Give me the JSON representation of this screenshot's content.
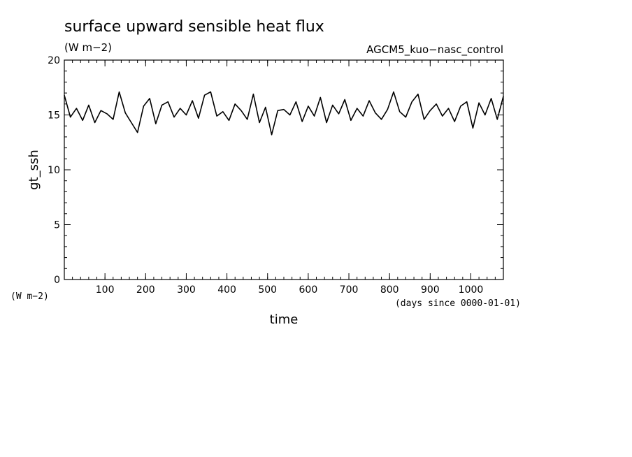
{
  "chart_data": {
    "type": "line",
    "title": "surface upward sensible heat flux",
    "units": "(W m−2)",
    "run_label": "AGCM5_kuo−nasc_control",
    "xlabel": "time",
    "x_units": "(days since 0000-01-01)",
    "ylabel": "gt_ssh",
    "y_units": "(W m−2)",
    "xlim": [
      0,
      1080
    ],
    "ylim": [
      0,
      20
    ],
    "x_ticks": [
      100,
      200,
      300,
      400,
      500,
      600,
      700,
      800,
      900,
      1000
    ],
    "y_ticks": [
      0,
      5,
      10,
      15,
      20
    ],
    "grid": false,
    "line_color": "#000000",
    "series": [
      {
        "x": [
          0,
          15,
          30,
          45,
          60,
          75,
          90,
          105,
          120,
          135,
          150,
          165,
          180,
          195,
          210,
          225,
          240,
          255,
          270,
          285,
          300,
          315,
          330,
          345,
          360,
          375,
          390,
          405,
          420,
          435,
          450,
          465,
          480,
          495,
          510,
          525,
          540,
          555,
          570,
          585,
          600,
          615,
          630,
          645,
          660,
          675,
          690,
          705,
          720,
          735,
          750,
          765,
          780,
          795,
          810,
          825,
          840,
          855,
          870,
          885,
          900,
          915,
          930,
          945,
          960,
          975,
          990,
          1005,
          1020,
          1035,
          1050,
          1065,
          1080
        ],
        "y": [
          16.8,
          14.8,
          15.6,
          14.5,
          15.9,
          14.3,
          15.4,
          15.1,
          14.6,
          17.1,
          15.2,
          14.3,
          13.4,
          15.8,
          16.5,
          14.2,
          15.9,
          16.2,
          14.8,
          15.6,
          15.0,
          16.3,
          14.7,
          16.8,
          17.1,
          14.9,
          15.3,
          14.5,
          16.0,
          15.4,
          14.6,
          16.9,
          14.3,
          15.7,
          13.2,
          15.4,
          15.5,
          15.0,
          16.2,
          14.4,
          15.8,
          14.9,
          16.6,
          14.3,
          15.9,
          15.1,
          16.4,
          14.5,
          15.6,
          14.9,
          16.3,
          15.2,
          14.6,
          15.5,
          17.1,
          15.3,
          14.8,
          16.2,
          16.9,
          14.6,
          15.4,
          16.0,
          14.9,
          15.6,
          14.4,
          15.8,
          16.2,
          13.8,
          16.1,
          15.0,
          16.5,
          14.6,
          16.7
        ]
      }
    ]
  }
}
